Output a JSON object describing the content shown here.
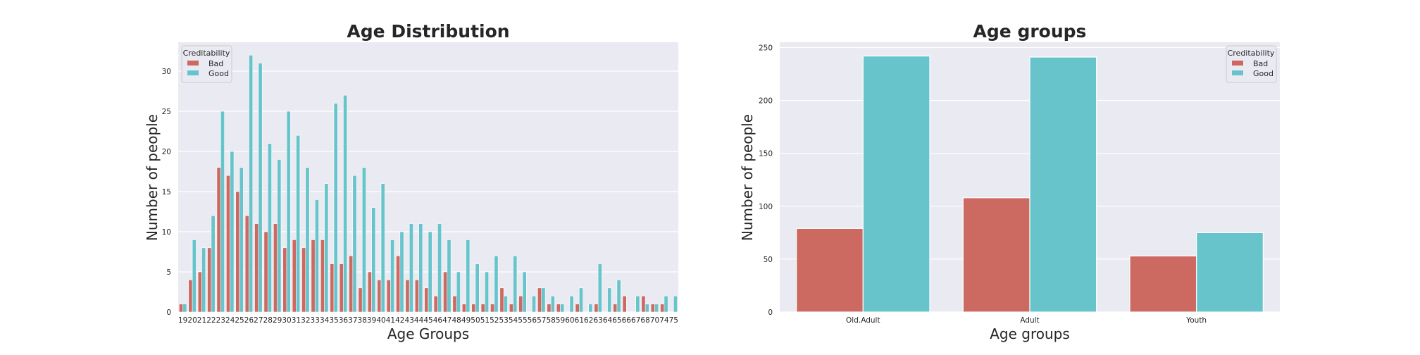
{
  "chart_data": [
    {
      "type": "bar",
      "title": "Age Distribution",
      "xlabel": "Age Groups",
      "ylabel": "Number of people",
      "ylim": [
        0,
        33.6
      ],
      "yticks": [
        0,
        5,
        10,
        15,
        20,
        25,
        30
      ],
      "grid": true,
      "legend": {
        "title": "Creditability",
        "placement": "top-left"
      },
      "categories": [
        "19",
        "20",
        "21",
        "22",
        "23",
        "24",
        "25",
        "26",
        "27",
        "28",
        "29",
        "30",
        "31",
        "32",
        "33",
        "34",
        "35",
        "36",
        "37",
        "38",
        "39",
        "40",
        "41",
        "42",
        "43",
        "44",
        "45",
        "46",
        "47",
        "48",
        "49",
        "50",
        "51",
        "52",
        "53",
        "54",
        "55",
        "56",
        "57",
        "58",
        "59",
        "60",
        "61",
        "62",
        "63",
        "64",
        "65",
        "66",
        "67",
        "68",
        "70",
        "74",
        "75"
      ],
      "series": [
        {
          "name": "Bad",
          "color": "#cc6961",
          "values": [
            1,
            4,
            5,
            8,
            18,
            17,
            15,
            12,
            11,
            10,
            11,
            8,
            9,
            8,
            9,
            9,
            6,
            6,
            7,
            3,
            5,
            4,
            4,
            7,
            4,
            4,
            3,
            2,
            5,
            2,
            1,
            1,
            1,
            1,
            3,
            1,
            2,
            0,
            3,
            1,
            1,
            0,
            1,
            0,
            1,
            0,
            1,
            2,
            0,
            2,
            1,
            1,
            0
          ]
        },
        {
          "name": "Good",
          "color": "#67c4cb",
          "values": [
            1,
            9,
            8,
            12,
            25,
            20,
            18,
            32,
            31,
            21,
            19,
            25,
            22,
            18,
            14,
            16,
            26,
            27,
            17,
            18,
            13,
            16,
            9,
            10,
            11,
            11,
            10,
            11,
            9,
            5,
            9,
            6,
            5,
            7,
            2,
            7,
            5,
            2,
            3,
            2,
            1,
            2,
            3,
            1,
            6,
            3,
            4,
            0,
            2,
            1,
            1,
            2,
            2
          ]
        }
      ]
    },
    {
      "type": "bar",
      "title": "Age groups",
      "xlabel": "Age groups",
      "ylabel": "Number of people",
      "ylim": [
        0,
        255
      ],
      "yticks": [
        0,
        50,
        100,
        150,
        200,
        250
      ],
      "grid": true,
      "legend": {
        "title": "Creditability",
        "placement": "top-right"
      },
      "categories": [
        "Old.Adult",
        "Adult",
        "Youth"
      ],
      "series": [
        {
          "name": "Bad",
          "color": "#cc6961",
          "values": [
            79,
            108,
            53
          ]
        },
        {
          "name": "Good",
          "color": "#67c4cb",
          "values": [
            242,
            241,
            75
          ]
        }
      ]
    }
  ]
}
